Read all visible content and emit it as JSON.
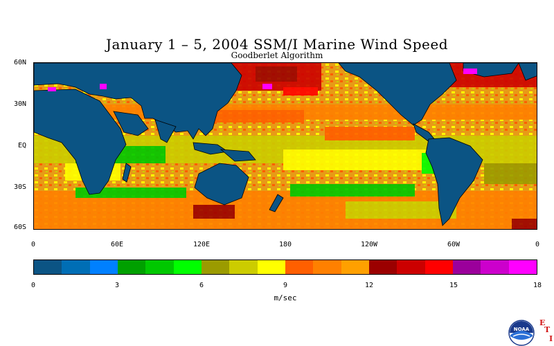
{
  "title": "January 1 – 5, 2004 SSM/I Marine Wind Speed",
  "subtitle": "Goodberlet Algorithm",
  "map": {
    "lat_labels": [
      "60N",
      "30N",
      "EQ",
      "30S",
      "60S"
    ],
    "lon_labels": [
      "0",
      "60E",
      "120E",
      "180",
      "120W",
      "60W",
      "0"
    ],
    "land_color": "#0b5484",
    "ocean_base_color": "#e79a17"
  },
  "colorbar": {
    "colors": [
      "#0b5484",
      "#006eb5",
      "#0080ff",
      "#00a000",
      "#00c800",
      "#00ff00",
      "#9b9b00",
      "#cccc00",
      "#ffff00",
      "#ff5f00",
      "#ff8000",
      "#ffa000",
      "#9b0000",
      "#cc0000",
      "#ff0000",
      "#9b009b",
      "#cc00cc",
      "#ff00ff"
    ],
    "ticks": [
      "0",
      "3",
      "6",
      "9",
      "12",
      "15",
      "18"
    ],
    "unit": "m/sec"
  },
  "logo": {
    "org": "NOAA",
    "letters": [
      "E",
      "T",
      "I"
    ]
  }
}
